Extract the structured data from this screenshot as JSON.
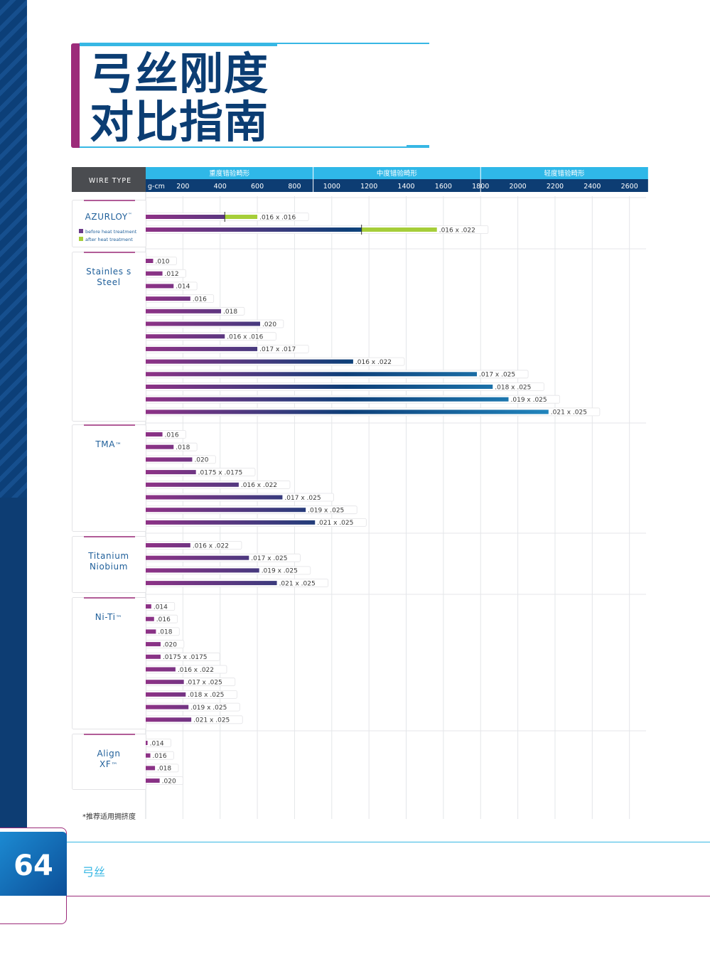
{
  "page": {
    "title_line1": "弓丝刚度",
    "title_line2": "对比指南",
    "footnote": "*推荐适用拥挤度",
    "page_number": "64",
    "section_name": "弓丝"
  },
  "chart_data": {
    "type": "bar",
    "orientation": "horizontal",
    "header": {
      "wire_type_label": "WIRE TYPE",
      "unit_label": "g-cm",
      "bands": [
        {
          "label": "重度错验畸形",
          "from": 0,
          "to": 900
        },
        {
          "label": "中度错验畸形",
          "from": 900,
          "to": 1800
        },
        {
          "label": "轻度错验畸形",
          "from": 1800,
          "to": 2700
        }
      ],
      "ticks": [
        200,
        400,
        600,
        800,
        1000,
        1200,
        1400,
        1600,
        1800,
        2000,
        2200,
        2400,
        2600
      ]
    },
    "xlim": [
      0,
      2700
    ],
    "colors": {
      "start": "#8e3286",
      "end": "#2aa7de",
      "legend_before": "#6b3a88",
      "legend_after": "#a6ce39"
    },
    "legend": [
      {
        "label": "before heat treatment",
        "color": "#6b3a88"
      },
      {
        "label": "after heat treatment",
        "color": "#a6ce39"
      }
    ],
    "groups": [
      {
        "name": "AZURLOY",
        "trademark": "™",
        "has_legend": true,
        "bars": [
          {
            "label": ".016 x .016",
            "value": 600,
            "before": 425
          },
          {
            "label": ".016 x .022",
            "value": 1565,
            "before": 1160
          }
        ]
      },
      {
        "name_lines": [
          "Stainles s",
          "Steel"
        ],
        "bars": [
          {
            "label": ".010",
            "value": 40
          },
          {
            "label": ".012",
            "value": 90
          },
          {
            "label": ".014",
            "value": 150
          },
          {
            "label": ".016",
            "value": 240
          },
          {
            "label": ".018",
            "value": 405
          },
          {
            "label": ".020",
            "value": 615
          },
          {
            "label": ".016 x .016",
            "value": 425
          },
          {
            "label": ".017 x .017",
            "value": 600
          },
          {
            "label": ".016 x .022",
            "value": 1115
          },
          {
            "label": ".017 x .025",
            "value": 1780
          },
          {
            "label": ".018 x .025",
            "value": 1865
          },
          {
            "label": ".019 x .025",
            "value": 1950
          },
          {
            "label": ".021 x .025",
            "value": 2165
          }
        ]
      },
      {
        "name": "TMA",
        "trademark": "™",
        "bars": [
          {
            "label": ".016",
            "value": 90
          },
          {
            "label": ".018",
            "value": 150
          },
          {
            "label": ".020",
            "value": 250
          },
          {
            "label": ".0175 x .0175",
            "value": 270
          },
          {
            "label": ".016 x .022",
            "value": 500
          },
          {
            "label": ".017 x .025",
            "value": 735
          },
          {
            "label": ".019 x .025",
            "value": 860
          },
          {
            "label": ".021 x .025",
            "value": 910
          }
        ]
      },
      {
        "name_lines": [
          "Titanium",
          "Niobium"
        ],
        "bars": [
          {
            "label": ".016 x .022",
            "value": 240
          },
          {
            "label": ".017 x .025",
            "value": 555
          },
          {
            "label": ".019 x .025",
            "value": 610
          },
          {
            "label": ".021 x .025",
            "value": 705
          }
        ]
      },
      {
        "name": "Ni-Ti",
        "trademark": "™",
        "bars": [
          {
            "label": ".014",
            "value": 30
          },
          {
            "label": ".016",
            "value": 45
          },
          {
            "label": ".018",
            "value": 55
          },
          {
            "label": ".020",
            "value": 80
          },
          {
            "label": ".0175 x .0175",
            "value": 80
          },
          {
            "label": ".016 x .022",
            "value": 160
          },
          {
            "label": ".017 x .025",
            "value": 205
          },
          {
            "label": ".018 x .025",
            "value": 215
          },
          {
            "label": ".019 x .025",
            "value": 230
          },
          {
            "label": ".021 x .025",
            "value": 245
          }
        ]
      },
      {
        "name_lines": [
          "Align",
          "XF"
        ],
        "trademark": "™",
        "bars": [
          {
            "label": ".014",
            "value": 10
          },
          {
            "label": ".016",
            "value": 25
          },
          {
            "label": ".018",
            "value": 50
          },
          {
            "label": ".020",
            "value": 75
          }
        ]
      }
    ]
  }
}
